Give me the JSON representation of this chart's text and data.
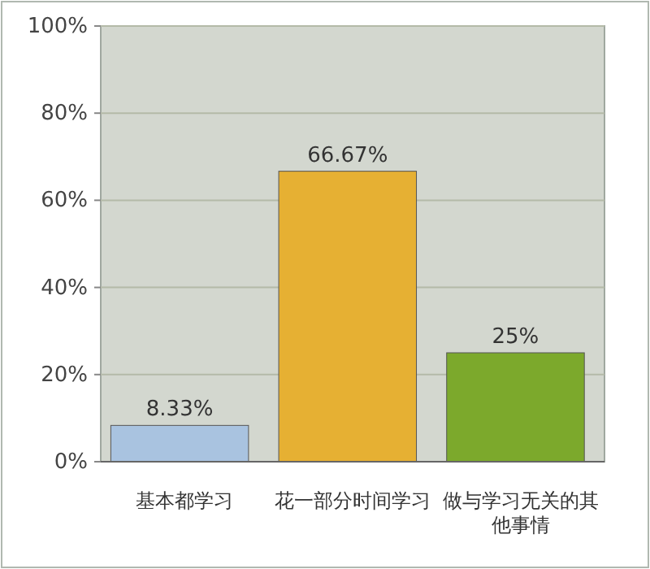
{
  "chart_data": {
    "type": "bar",
    "categories": [
      "基本都学习",
      "花一部分时间学习",
      "做与学习无关的其他事情"
    ],
    "values": [
      8.33,
      66.67,
      25
    ],
    "colors": [
      "#a9c3e0",
      "#e6b033",
      "#7ca92c"
    ],
    "ylim": [
      0,
      100
    ],
    "yticks": [
      {
        "value": 0,
        "label": "0%"
      },
      {
        "value": 20,
        "label": "20%"
      },
      {
        "value": 40,
        "label": "40%"
      },
      {
        "value": 60,
        "label": "60%"
      },
      {
        "value": 80,
        "label": "80%"
      },
      {
        "value": 100,
        "label": "100%"
      }
    ],
    "grid": "y",
    "value_labels": [
      "8.33%",
      "66.67%",
      "25%"
    ]
  }
}
